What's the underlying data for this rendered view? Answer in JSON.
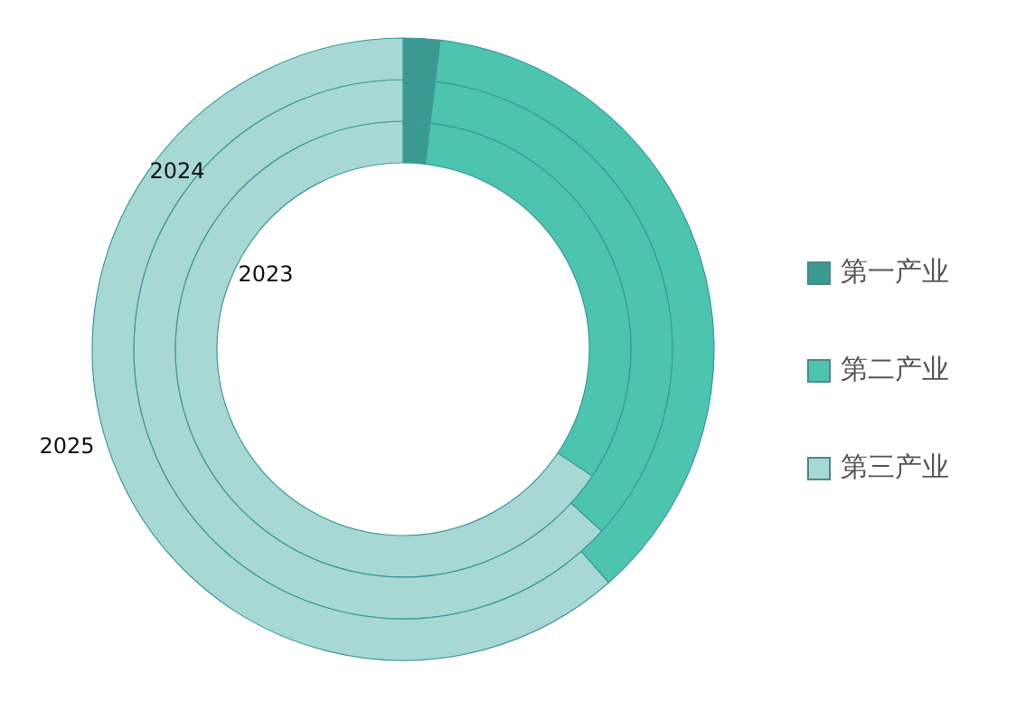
{
  "chart_data": {
    "type": "donut",
    "categories": [
      "第一产业",
      "第二产业",
      "第三产业"
    ],
    "colors": [
      "#3a9a92",
      "#4cc4b0",
      "#a8d8d4"
    ],
    "legend": "right",
    "series": [
      {
        "name": "2023",
        "values": [
          1.9,
          32.5,
          65.6
        ]
      },
      {
        "name": "2024",
        "values": [
          1.9,
          34.9,
          63.2
        ]
      },
      {
        "name": "2025",
        "values": [
          1.9,
          36.6,
          61.5
        ]
      }
    ]
  }
}
